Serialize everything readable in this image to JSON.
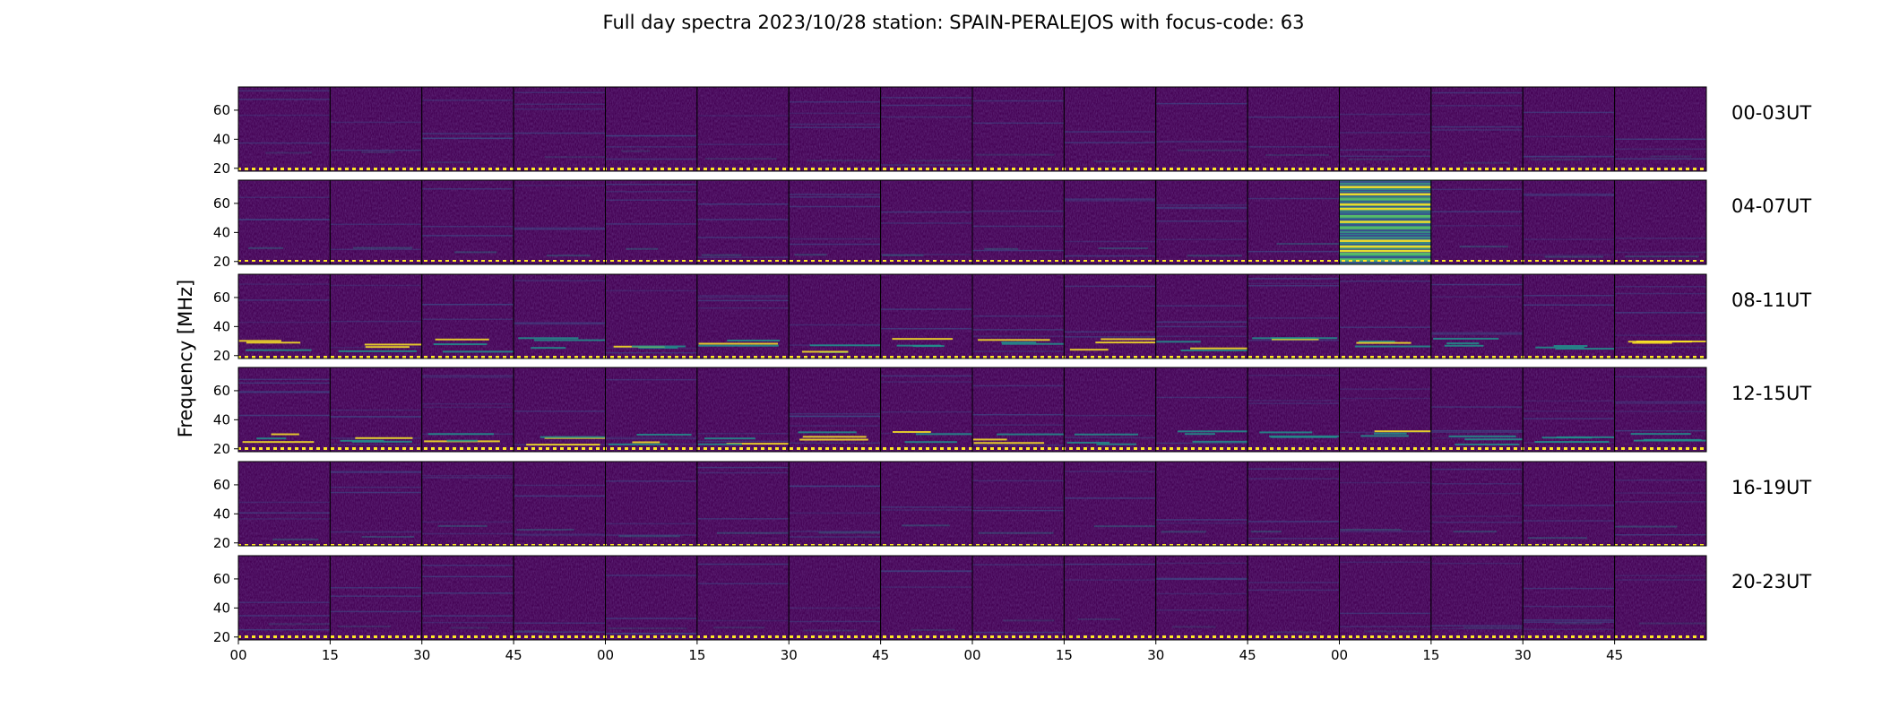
{
  "chart_data": {
    "type": "heatmap",
    "title": "Full day spectra 2023/10/28 station: SPAIN-PERALEJOS with focus-code: 63",
    "ylabel": "Frequency [MHz]",
    "y_ticks": [
      "20",
      "40",
      "60"
    ],
    "ylim": [
      18,
      76
    ],
    "x_ticks": [
      "00",
      "15",
      "30",
      "45",
      "00",
      "15",
      "30",
      "45",
      "00",
      "15",
      "30",
      "45",
      "00",
      "15",
      "30",
      "45"
    ],
    "panels_per_row": 16,
    "colormap": [
      "#440154",
      "#3b528b",
      "#21918c",
      "#5ec962",
      "#fde725"
    ],
    "rows": [
      {
        "label": "00-03UT"
      },
      {
        "label": "04-07UT"
      },
      {
        "label": "08-11UT"
      },
      {
        "label": "12-15UT"
      },
      {
        "label": "16-19UT"
      },
      {
        "label": "20-23UT"
      }
    ]
  }
}
